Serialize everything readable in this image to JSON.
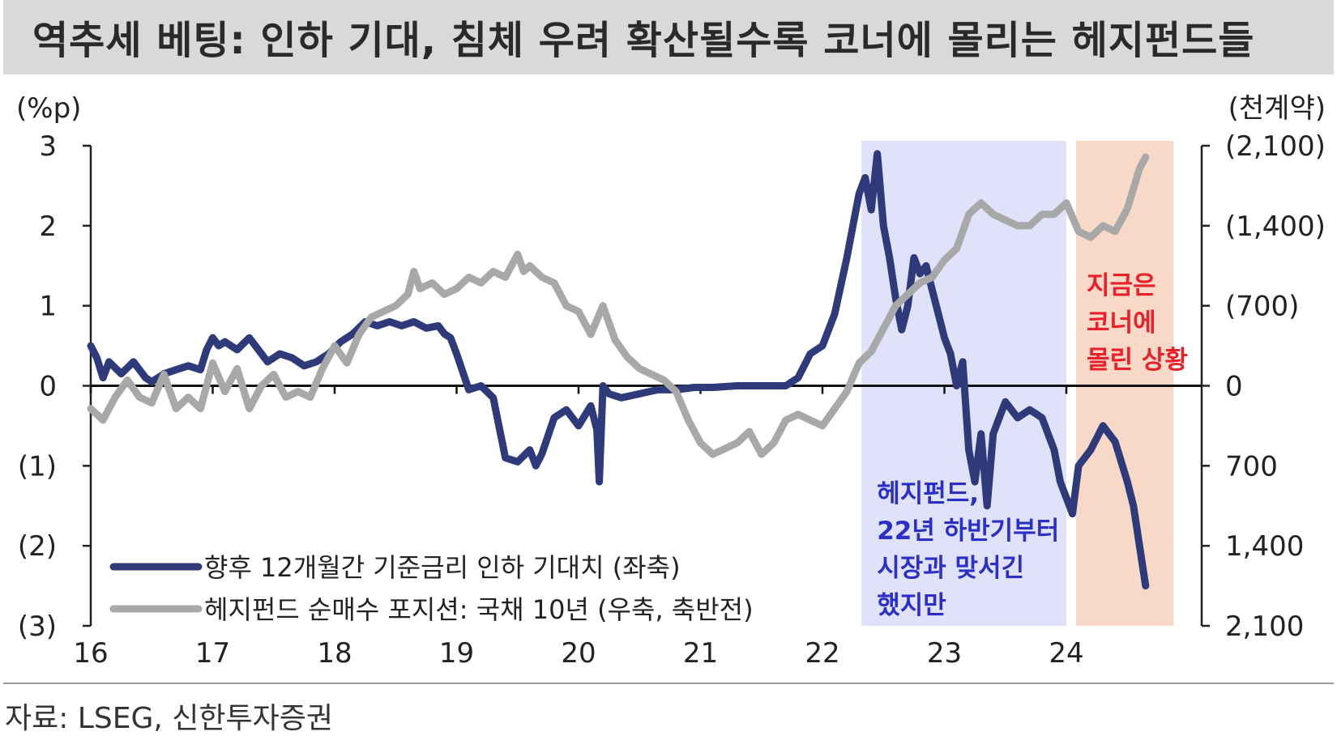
{
  "title": "역추세 베팅: 인하 기대, 침체 우려 확산될수록 코너에 몰리는 헤지펀드들",
  "source": "자료: LSEG, 신한투자증권",
  "chart_data": {
    "type": "line",
    "left_unit": "(%p)",
    "right_unit": "(천계약)",
    "x_ticks": [
      "16",
      "17",
      "18",
      "19",
      "20",
      "21",
      "22",
      "23",
      "24"
    ],
    "left_ticks": [
      {
        "value": 3,
        "label": "3"
      },
      {
        "value": 2,
        "label": "2"
      },
      {
        "value": 1,
        "label": "1"
      },
      {
        "value": 0,
        "label": "0"
      },
      {
        "value": -1,
        "label": "(1)"
      },
      {
        "value": -2,
        "label": "(2)"
      },
      {
        "value": -3,
        "label": "(3)"
      }
    ],
    "right_ticks": [
      {
        "value": -2100,
        "label": "(2,100)"
      },
      {
        "value": -1400,
        "label": "(1,400)"
      },
      {
        "value": -700,
        "label": "(700)"
      },
      {
        "value": 0,
        "label": "0"
      },
      {
        "value": 700,
        "label": "700"
      },
      {
        "value": 1400,
        "label": "1,400"
      },
      {
        "value": 2100,
        "label": "2,100"
      }
    ],
    "left_ylim": [
      -3,
      3
    ],
    "right_ylim": [
      -2100,
      2100
    ],
    "right_axis_inverted": true,
    "shaded_regions": [
      {
        "x0": 22.32,
        "x1": 24.0,
        "color": "#dfe2f8"
      },
      {
        "x0": 24.08,
        "x1": 24.88,
        "color": "#f8d9c8"
      }
    ],
    "annotations": [
      {
        "x": 24.1,
        "y": 1.15,
        "lines": [
          "지금은",
          "코너에",
          "몰린 상황"
        ],
        "color": "#e8202a"
      },
      {
        "x": 22.38,
        "y": -1.45,
        "lines": [
          "헤지펀드,",
          "22년 하반기부터",
          "시장과 맞서긴",
          "했지만"
        ],
        "color": "#2b2fc8"
      }
    ],
    "legend": [
      {
        "label": "향후 12개월간 기준금리 인하 기대치 (좌축)",
        "color": "#2e3a7a"
      },
      {
        "label": "헤지펀드 순매수 포지션: 국채 10년 (우축, 축반전)",
        "color": "#a8a8a8"
      }
    ],
    "series": [
      {
        "name": "향후 12개월간 기준금리 인하 기대치 (좌축)",
        "axis": "left",
        "color": "#2e3a7a",
        "x": [
          16.0,
          16.05,
          16.1,
          16.15,
          16.25,
          16.35,
          16.45,
          16.5,
          16.6,
          16.7,
          16.8,
          16.9,
          16.95,
          17.0,
          17.05,
          17.1,
          17.2,
          17.3,
          17.35,
          17.45,
          17.55,
          17.65,
          17.75,
          17.85,
          17.95,
          18.05,
          18.15,
          18.25,
          18.35,
          18.45,
          18.55,
          18.65,
          18.75,
          18.85,
          18.9,
          18.95,
          19.0,
          19.1,
          19.2,
          19.3,
          19.4,
          19.5,
          19.6,
          19.65,
          19.7,
          19.8,
          19.9,
          20.0,
          20.1,
          20.15,
          20.17,
          20.2,
          20.25,
          20.35,
          20.5,
          20.65,
          20.8,
          20.95,
          21.1,
          21.3,
          21.5,
          21.7,
          21.8,
          21.9,
          22.0,
          22.1,
          22.2,
          22.25,
          22.3,
          22.35,
          22.4,
          22.45,
          22.5,
          22.55,
          22.6,
          22.65,
          22.7,
          22.75,
          22.8,
          22.85,
          22.9,
          22.95,
          23.0,
          23.05,
          23.1,
          23.15,
          23.2,
          23.25,
          23.3,
          23.35,
          23.4,
          23.45,
          23.5,
          23.6,
          23.7,
          23.8,
          23.85,
          23.9,
          23.95,
          24.0,
          24.05,
          24.1,
          24.2,
          24.3,
          24.35,
          24.4,
          24.5,
          24.55,
          24.6,
          24.65
        ],
        "values": [
          0.5,
          0.35,
          0.1,
          0.3,
          0.15,
          0.3,
          0.1,
          0.05,
          0.15,
          0.2,
          0.25,
          0.2,
          0.45,
          0.6,
          0.5,
          0.55,
          0.45,
          0.6,
          0.5,
          0.3,
          0.4,
          0.35,
          0.25,
          0.3,
          0.4,
          0.55,
          0.65,
          0.8,
          0.75,
          0.8,
          0.75,
          0.8,
          0.72,
          0.75,
          0.65,
          0.6,
          0.4,
          -0.05,
          0.0,
          -0.15,
          -0.9,
          -0.95,
          -0.8,
          -1.0,
          -0.85,
          -0.4,
          -0.3,
          -0.5,
          -0.25,
          -0.55,
          -1.2,
          0.0,
          -0.1,
          -0.15,
          -0.1,
          -0.05,
          -0.05,
          -0.02,
          -0.02,
          0.0,
          0.0,
          0.0,
          0.1,
          0.4,
          0.5,
          0.9,
          1.6,
          2.0,
          2.4,
          2.6,
          2.2,
          2.9,
          2.0,
          1.6,
          1.1,
          0.7,
          1.0,
          1.6,
          1.4,
          1.5,
          1.2,
          0.9,
          0.6,
          0.4,
          0.0,
          0.3,
          -0.8,
          -1.2,
          -0.6,
          -1.5,
          -0.6,
          -0.4,
          -0.2,
          -0.4,
          -0.3,
          -0.4,
          -0.6,
          -0.8,
          -1.2,
          -1.4,
          -1.6,
          -1.0,
          -0.8,
          -0.5,
          -0.6,
          -0.7,
          -1.2,
          -1.5,
          -2.0,
          -2.5
        ]
      },
      {
        "name": "헤지펀드 순매수 포지션: 국채 10년 (우축, 축반전)",
        "axis": "right",
        "color": "#a8a8a8",
        "x": [
          16.0,
          16.1,
          16.2,
          16.3,
          16.4,
          16.5,
          16.6,
          16.7,
          16.8,
          16.9,
          17.0,
          17.1,
          17.2,
          17.3,
          17.4,
          17.5,
          17.6,
          17.7,
          17.8,
          17.9,
          18.0,
          18.1,
          18.2,
          18.3,
          18.4,
          18.5,
          18.6,
          18.65,
          18.7,
          18.8,
          18.9,
          19.0,
          19.1,
          19.2,
          19.3,
          19.4,
          19.5,
          19.55,
          19.6,
          19.7,
          19.8,
          19.9,
          20.0,
          20.1,
          20.2,
          20.3,
          20.4,
          20.5,
          20.6,
          20.7,
          20.8,
          20.9,
          21.0,
          21.1,
          21.2,
          21.3,
          21.4,
          21.5,
          21.6,
          21.7,
          21.8,
          21.9,
          22.0,
          22.1,
          22.2,
          22.3,
          22.4,
          22.5,
          22.6,
          22.7,
          22.8,
          22.9,
          23.0,
          23.1,
          23.2,
          23.3,
          23.4,
          23.5,
          23.6,
          23.7,
          23.8,
          23.9,
          24.0,
          24.1,
          24.2,
          24.3,
          24.4,
          24.5,
          24.6,
          24.65
        ],
        "values": [
          200,
          300,
          100,
          -50,
          100,
          150,
          -100,
          200,
          100,
          200,
          -200,
          50,
          -150,
          200,
          0,
          -100,
          100,
          50,
          100,
          -150,
          -350,
          -200,
          -450,
          -600,
          -650,
          -700,
          -800,
          -1000,
          -850,
          -900,
          -800,
          -850,
          -950,
          -900,
          -1000,
          -950,
          -1150,
          -1000,
          -1050,
          -950,
          -900,
          -700,
          -650,
          -450,
          -700,
          -400,
          -250,
          -150,
          -100,
          -50,
          50,
          300,
          500,
          600,
          550,
          500,
          400,
          600,
          500,
          300,
          250,
          300,
          350,
          200,
          50,
          -200,
          -300,
          -500,
          -700,
          -800,
          -900,
          -950,
          -1100,
          -1200,
          -1500,
          -1600,
          -1500,
          -1450,
          -1400,
          -1400,
          -1500,
          -1500,
          -1600,
          -1350,
          -1300,
          -1400,
          -1350,
          -1550,
          -1900,
          -2000
        ]
      }
    ]
  }
}
